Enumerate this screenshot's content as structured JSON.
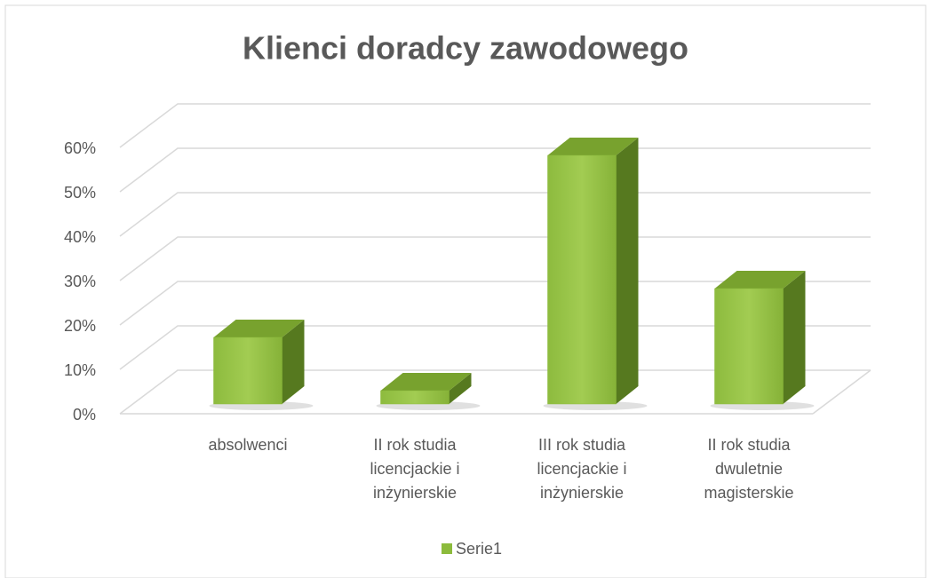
{
  "chart_data": {
    "type": "bar3d",
    "title": "Klienci doradcy zawodowego",
    "categories": [
      "absolwenci",
      "II rok studia licencjackie i inżynierskie",
      "III rok studia licencjackie i inżynierskie",
      "II rok studia dwuletnie magisterskie"
    ],
    "series": [
      {
        "name": "Serie1",
        "color": "#8cbb3c",
        "values": [
          15,
          3,
          56,
          26
        ]
      }
    ],
    "ylim": [
      0,
      60
    ],
    "yticks": [
      {
        "value": 0,
        "label": "0%"
      },
      {
        "value": 10,
        "label": "10%"
      },
      {
        "value": 20,
        "label": "20%"
      },
      {
        "value": 30,
        "label": "30%"
      },
      {
        "value": 40,
        "label": "40%"
      },
      {
        "value": 50,
        "label": "50%"
      },
      {
        "value": 60,
        "label": "60%"
      }
    ],
    "grid": true,
    "legend": "bottom"
  }
}
